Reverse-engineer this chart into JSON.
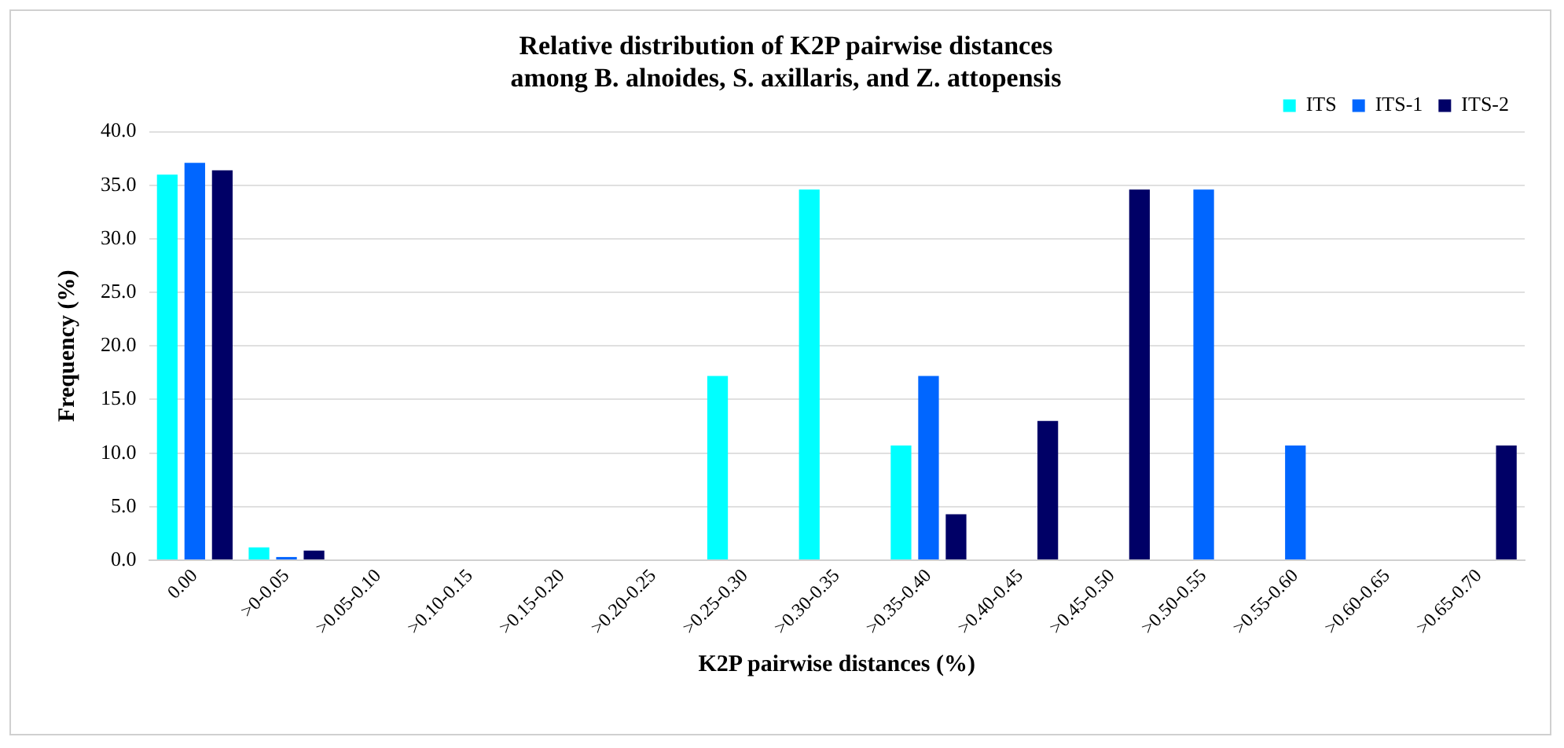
{
  "chart_data": {
    "type": "bar",
    "title": "Relative distribution of K2P pairwise distances\namong B. alnoides, S. axillaris, and Z. attopensis",
    "xlabel": "K2P pairwise distances (%)",
    "ylabel": "Frequency (%)",
    "categories": [
      "0.00",
      ">0-0.05",
      ">0.05-0.10",
      ">0.10-0.15",
      ">0.15-0.20",
      ">0.20-0.25",
      ">0.25-0.30",
      ">0.30-0.35",
      ">0.35-0.40",
      ">0.40-0.45",
      ">0.45-0.50",
      ">0.50-0.55",
      ">0.55-0.60",
      ">0.60-0.65",
      ">0.65-0.70"
    ],
    "series": [
      {
        "name": "ITS",
        "color": "#00ffff",
        "values": [
          36.0,
          1.2,
          0,
          0,
          0,
          0,
          17.2,
          34.6,
          10.7,
          0,
          0,
          0,
          0,
          0,
          0
        ]
      },
      {
        "name": "ITS-1",
        "color": "#0066ff",
        "values": [
          37.1,
          0.3,
          0,
          0,
          0,
          0,
          0,
          0,
          17.2,
          0,
          0,
          34.6,
          10.7,
          0,
          0
        ]
      },
      {
        "name": "ITS-2",
        "color": "#000066",
        "values": [
          36.4,
          0.9,
          0,
          0,
          0,
          0,
          0,
          0,
          4.3,
          13.0,
          34.6,
          0,
          0,
          0,
          10.7
        ]
      }
    ],
    "ylim": [
      0,
      40
    ],
    "yticks": [
      {
        "value": 0,
        "label": "0.0"
      },
      {
        "value": 5,
        "label": "5.0"
      },
      {
        "value": 10,
        "label": "10.0"
      },
      {
        "value": 15,
        "label": "15.0"
      },
      {
        "value": 20,
        "label": "20.0"
      },
      {
        "value": 25,
        "label": "25.0"
      },
      {
        "value": 30,
        "label": "30.0"
      },
      {
        "value": 35,
        "label": "35.0"
      },
      {
        "value": 40,
        "label": "40.0"
      }
    ],
    "grid": "y",
    "legend": "top right"
  }
}
